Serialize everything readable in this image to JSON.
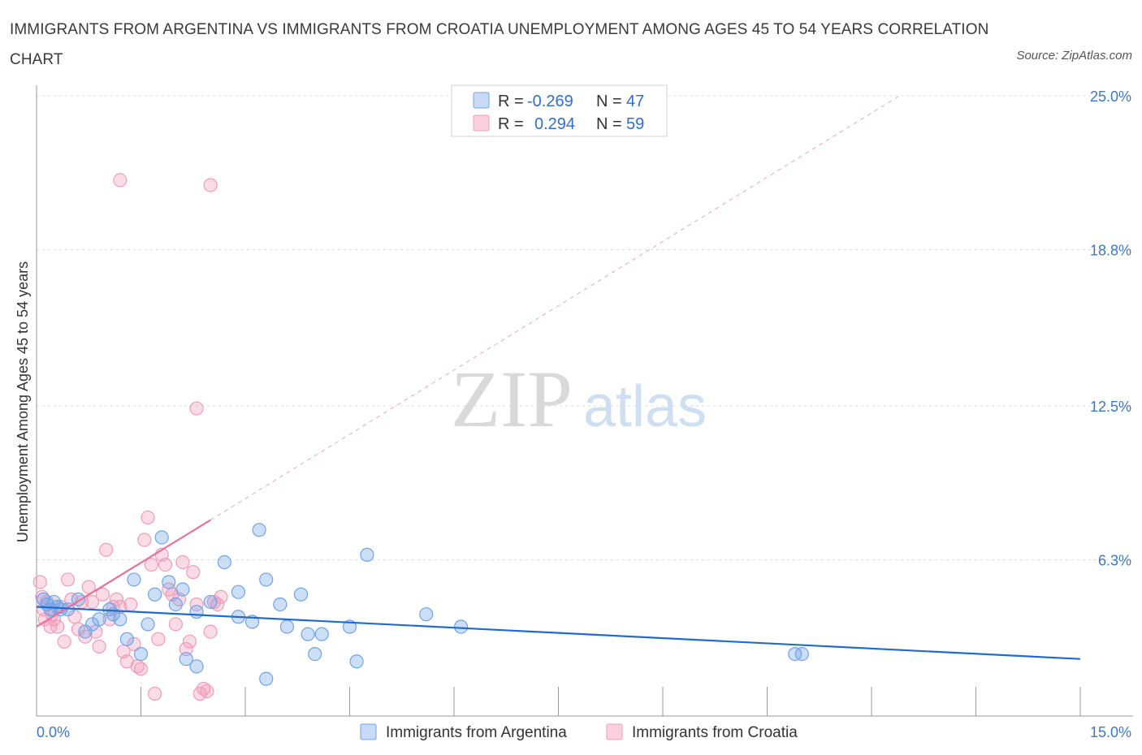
{
  "title": "IMMIGRANTS FROM ARGENTINA VS IMMIGRANTS FROM CROATIA UNEMPLOYMENT AMONG AGES 45 TO 54 YEARS CORRELATION CHART",
  "source": "Source: ZipAtlas.com",
  "watermark": {
    "zip": "ZIP",
    "atlas": "atlas"
  },
  "colors": {
    "argentina": "#6fa3e8",
    "argentina_line": "#1f6cd0",
    "croatia": "#f29bb8",
    "croatia_line": "#e8709a",
    "axis_text": "#3b78c8"
  },
  "legend": {
    "r_label": "R =",
    "n_label": "N =",
    "argentina": {
      "r": "-0.269",
      "n": "47"
    },
    "croatia": {
      "r": "0.294",
      "n": "59"
    }
  },
  "chart_data": {
    "type": "scatter",
    "title": "IMMIGRANTS FROM ARGENTINA VS IMMIGRANTS FROM CROATIA UNEMPLOYMENT AMONG AGES 45 TO 54 YEARS CORRELATION CHART",
    "xlabel": "",
    "ylabel": "Unemployment Among Ages 45 to 54 years",
    "xlim": [
      0,
      15
    ],
    "ylim": [
      0,
      25
    ],
    "x_tick_labels": [
      "0.0%",
      "15.0%"
    ],
    "y_tick_labels": [
      "6.3%",
      "12.5%",
      "18.8%",
      "25.0%"
    ],
    "y_ticks": [
      6.3,
      12.5,
      18.8,
      25.0
    ],
    "legend_position": "top-center",
    "series": [
      {
        "name": "Immigrants from Argentina",
        "r": -0.269,
        "n": 47,
        "trend": {
          "x": [
            0,
            15
          ],
          "y": [
            4.4,
            2.3
          ]
        },
        "points": [
          [
            0.1,
            4.7
          ],
          [
            0.15,
            4.5
          ],
          [
            0.2,
            4.3
          ],
          [
            0.25,
            4.6
          ],
          [
            0.3,
            4.4
          ],
          [
            0.35,
            4.3
          ],
          [
            0.45,
            4.3
          ],
          [
            0.6,
            4.7
          ],
          [
            0.7,
            3.4
          ],
          [
            0.8,
            3.7
          ],
          [
            0.9,
            3.9
          ],
          [
            1.05,
            4.3
          ],
          [
            1.1,
            4.1
          ],
          [
            1.2,
            3.9
          ],
          [
            1.3,
            3.1
          ],
          [
            1.4,
            5.5
          ],
          [
            1.5,
            2.5
          ],
          [
            1.6,
            3.7
          ],
          [
            1.7,
            4.9
          ],
          [
            1.8,
            7.2
          ],
          [
            1.9,
            5.4
          ],
          [
            2.0,
            4.5
          ],
          [
            2.1,
            5.1
          ],
          [
            2.15,
            2.3
          ],
          [
            2.3,
            4.2
          ],
          [
            2.3,
            2.0
          ],
          [
            2.5,
            4.6
          ],
          [
            2.7,
            6.2
          ],
          [
            2.9,
            5.0
          ],
          [
            2.9,
            4.0
          ],
          [
            3.1,
            3.8
          ],
          [
            3.2,
            7.5
          ],
          [
            3.3,
            5.5
          ],
          [
            3.5,
            4.5
          ],
          [
            3.3,
            1.5
          ],
          [
            3.6,
            3.6
          ],
          [
            3.8,
            4.9
          ],
          [
            3.9,
            3.3
          ],
          [
            4.0,
            2.5
          ],
          [
            4.1,
            3.3
          ],
          [
            4.5,
            3.6
          ],
          [
            4.6,
            2.2
          ],
          [
            4.75,
            6.5
          ],
          [
            5.6,
            4.1
          ],
          [
            6.1,
            3.6
          ],
          [
            10.9,
            2.5
          ],
          [
            11.0,
            2.5
          ]
        ]
      },
      {
        "name": "Immigrants from Croatia",
        "r": 0.294,
        "n": 59,
        "trend": {
          "x": [
            0,
            2.5
          ],
          "y": [
            3.6,
            7.9
          ],
          "extended": {
            "x": [
              2.5,
              12.4
            ],
            "y": [
              7.9,
              25.0
            ]
          }
        },
        "points": [
          [
            0.05,
            5.4
          ],
          [
            0.08,
            4.8
          ],
          [
            0.1,
            4.3
          ],
          [
            0.12,
            3.9
          ],
          [
            0.15,
            4.6
          ],
          [
            0.2,
            3.6
          ],
          [
            0.22,
            4.1
          ],
          [
            0.25,
            3.9
          ],
          [
            0.3,
            3.6
          ],
          [
            0.35,
            4.4
          ],
          [
            0.4,
            3.0
          ],
          [
            0.45,
            5.5
          ],
          [
            0.5,
            4.7
          ],
          [
            0.55,
            4.0
          ],
          [
            0.6,
            3.5
          ],
          [
            0.65,
            4.6
          ],
          [
            0.7,
            3.2
          ],
          [
            0.75,
            5.2
          ],
          [
            0.8,
            4.6
          ],
          [
            0.85,
            3.4
          ],
          [
            0.9,
            2.8
          ],
          [
            0.95,
            4.9
          ],
          [
            1.0,
            6.7
          ],
          [
            1.05,
            3.9
          ],
          [
            1.1,
            4.4
          ],
          [
            1.15,
            4.7
          ],
          [
            1.2,
            4.4
          ],
          [
            1.25,
            2.6
          ],
          [
            1.3,
            2.2
          ],
          [
            1.35,
            4.5
          ],
          [
            1.4,
            2.9
          ],
          [
            1.45,
            2.0
          ],
          [
            1.5,
            1.9
          ],
          [
            1.55,
            7.1
          ],
          [
            1.6,
            8.0
          ],
          [
            1.65,
            6.1
          ],
          [
            1.7,
            0.9
          ],
          [
            1.75,
            3.1
          ],
          [
            1.8,
            6.5
          ],
          [
            1.85,
            6.1
          ],
          [
            1.9,
            5.1
          ],
          [
            1.95,
            4.9
          ],
          [
            2.0,
            3.7
          ],
          [
            2.05,
            4.7
          ],
          [
            2.1,
            6.2
          ],
          [
            2.15,
            2.7
          ],
          [
            2.2,
            3.0
          ],
          [
            2.25,
            5.8
          ],
          [
            2.3,
            4.5
          ],
          [
            2.35,
            0.9
          ],
          [
            2.4,
            1.1
          ],
          [
            2.45,
            1.0
          ],
          [
            2.5,
            3.4
          ],
          [
            2.55,
            4.6
          ],
          [
            2.6,
            4.5
          ],
          [
            2.65,
            4.8
          ],
          [
            2.3,
            12.4
          ],
          [
            1.2,
            21.6
          ],
          [
            2.5,
            21.4
          ]
        ]
      }
    ]
  },
  "bottom_legend": {
    "argentina": "Immigrants from Argentina",
    "croatia": "Immigrants from Croatia"
  }
}
